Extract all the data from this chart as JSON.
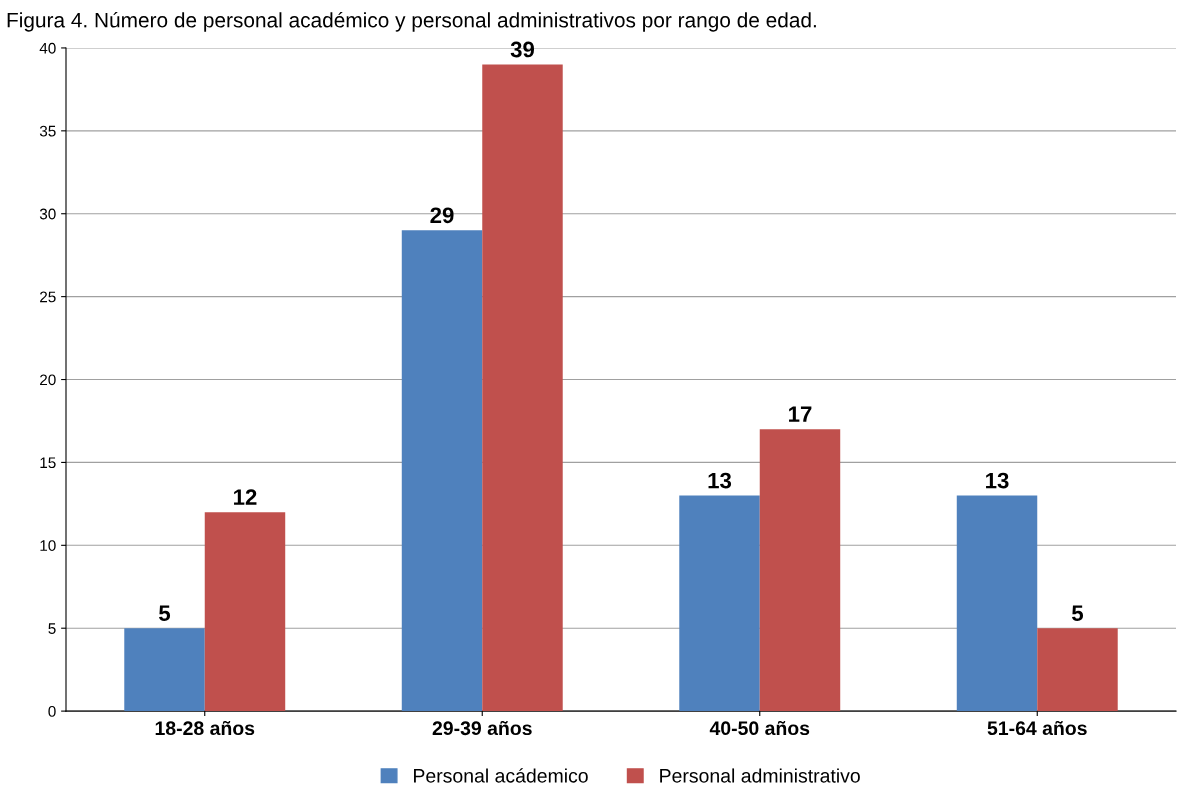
{
  "chart_data": {
    "type": "bar",
    "title": "Figura 4. Número de personal académico y personal administrativos por rango de edad.",
    "categories": [
      "18-28 años",
      "29-39 años",
      "40-50 años",
      "51-64 años"
    ],
    "series": [
      {
        "name": "Personal acádemico",
        "color": "#4f81bd",
        "values": [
          5,
          29,
          13,
          13
        ]
      },
      {
        "name": "Personal administrativo",
        "color": "#c0504d",
        "values": [
          12,
          39,
          17,
          5
        ]
      }
    ],
    "ylim": [
      0,
      40
    ],
    "yticks": [
      0,
      5,
      10,
      15,
      20,
      25,
      30,
      35,
      40
    ],
    "grid": "y",
    "legend": "bottom",
    "data_labels": true
  }
}
